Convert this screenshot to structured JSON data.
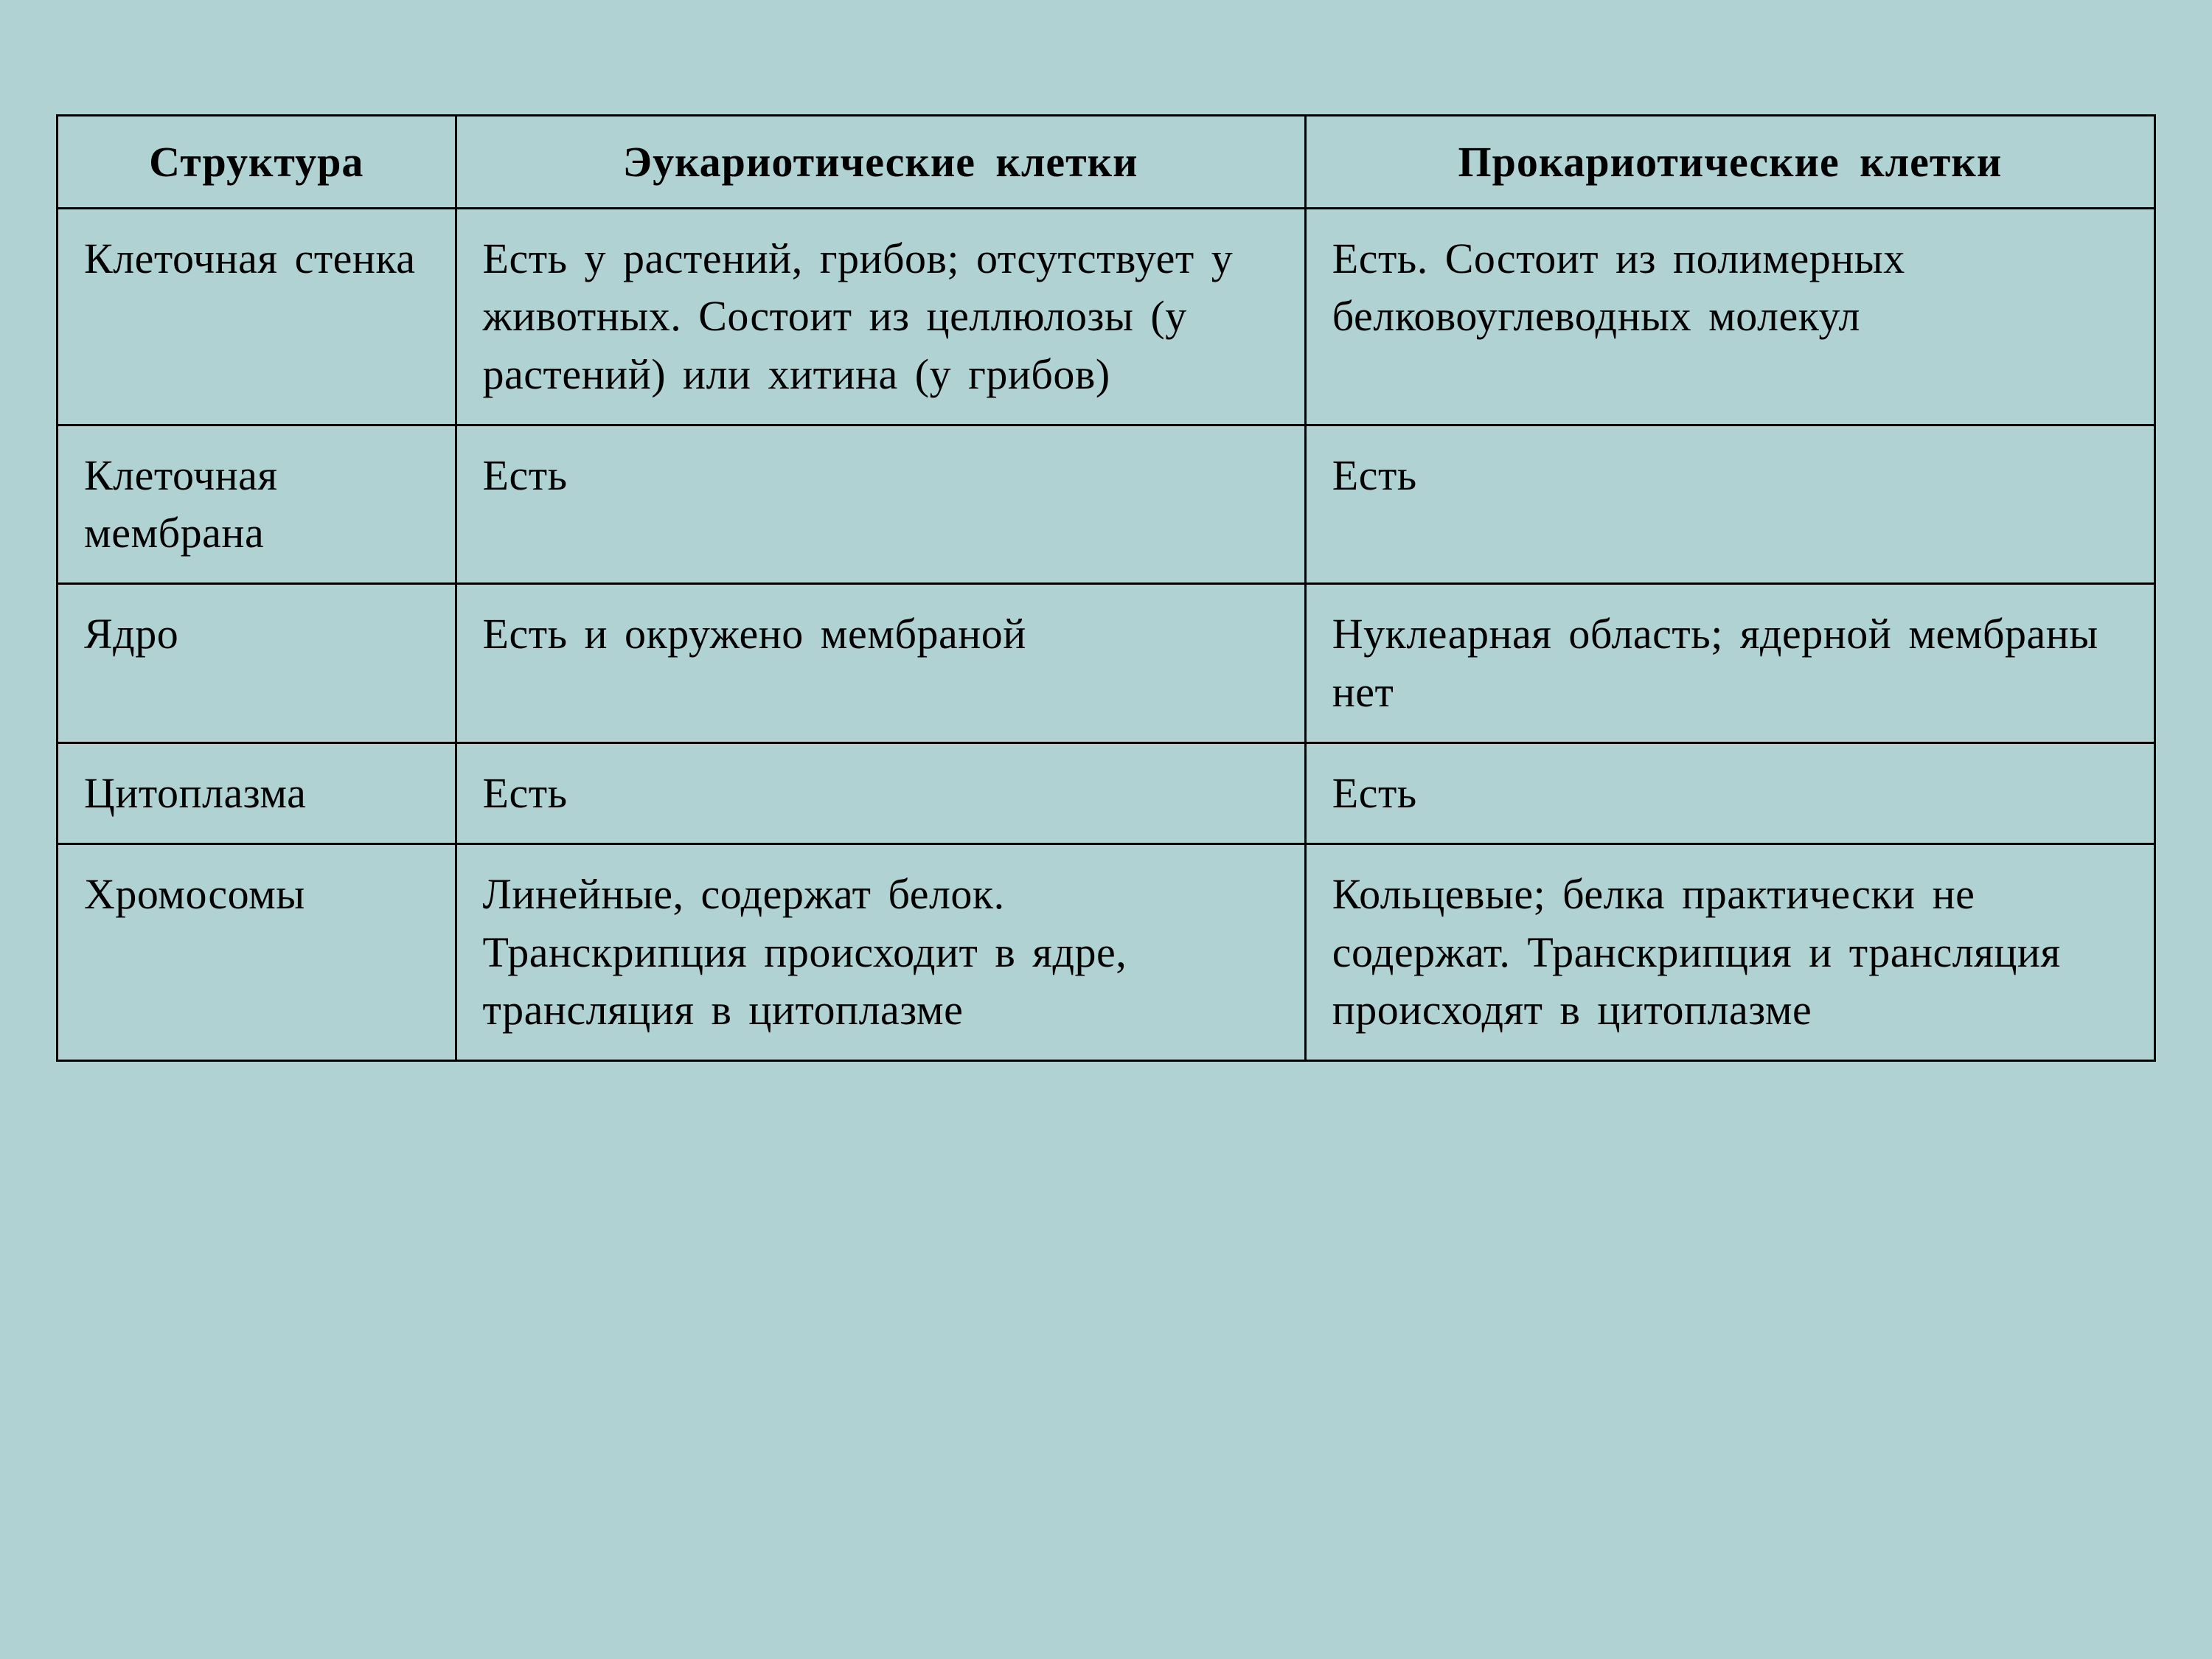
{
  "table": {
    "background_color": "#b0d2d2",
    "border_color": "#000000",
    "border_width": 3,
    "text_color": "#000000",
    "font_family": "Georgia, Times New Roman, serif",
    "header_fontsize": 58,
    "cell_fontsize": 58,
    "header_fontweight": "bold",
    "columns": [
      {
        "label": "Структура",
        "width_pct": 19
      },
      {
        "label": "Эукариотические клетки",
        "width_pct": 40.5
      },
      {
        "label": "Прокариотические клетки",
        "width_pct": 40.5
      }
    ],
    "rows": [
      {
        "structure": "Клеточная стенка",
        "eukaryotic": "Есть у растений, грибов; отсутствует у животных. Состоит из целлюлозы (у растений) или хитина (у грибов)",
        "prokaryotic": "Есть. Состоит из полимерных белковоуглеводных молекул"
      },
      {
        "structure": "Клеточная мембрана",
        "eukaryotic": "Есть",
        "prokaryotic": "Есть"
      },
      {
        "structure": "Ядро",
        "eukaryotic": "Есть и окружено мембраной",
        "prokaryotic": "Нуклеарная область; ядерной мембраны нет"
      },
      {
        "structure": "Цитоплазма",
        "eukaryotic": "Есть",
        "prokaryotic": "Есть"
      },
      {
        "structure": "Хромосомы",
        "eukaryotic": "Линейные, содержат белок. Транскрипция происходит в ядре, трансляция в цитоплазме",
        "prokaryotic": "Кольцевые; белка практически не содержат. Транскрипция и трансляция происходят в цитоплазме"
      }
    ]
  }
}
